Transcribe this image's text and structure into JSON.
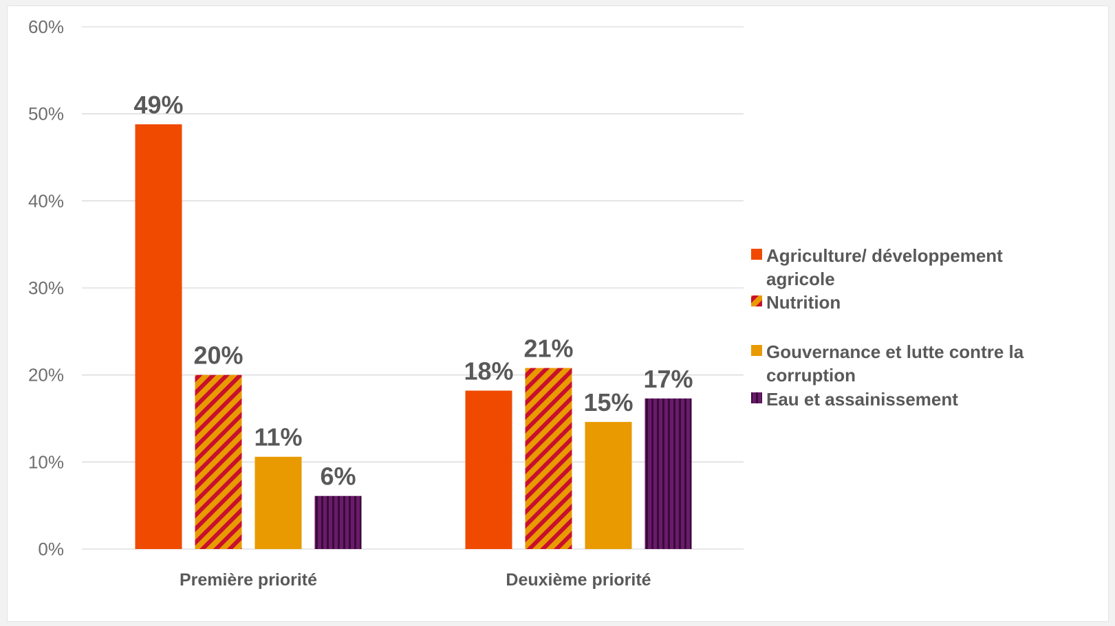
{
  "chart_data": {
    "type": "bar",
    "title": "",
    "xlabel": "",
    "ylabel": "",
    "categories": [
      "Première priorité",
      "Deuxième priorité"
    ],
    "ylim": [
      0,
      60
    ],
    "yticks": [
      0,
      10,
      20,
      30,
      40,
      50,
      60
    ],
    "ytick_labels": [
      "0%",
      "10%",
      "20%",
      "30%",
      "40%",
      "50%",
      "60%"
    ],
    "grid": true,
    "legend_position": "right",
    "series": [
      {
        "name": "Agriculture/ développement agricole",
        "legend_lines": [
          "Agriculture/ développement",
          "agricole"
        ],
        "values": [
          48.8,
          18.2
        ],
        "labels": [
          "49%",
          "18%"
        ],
        "color": "#f04a00",
        "pattern": "solid"
      },
      {
        "name": "Nutrition",
        "legend_lines": [
          "Nutrition"
        ],
        "values": [
          20.0,
          20.8
        ],
        "labels": [
          "20%",
          "21%"
        ],
        "color": "#e89a00",
        "color2": "#c8102e",
        "pattern": "diagonal-stripes"
      },
      {
        "name": "Gouvernance et lutte contre la corruption",
        "legend_lines": [
          "Gouvernance et lutte contre la",
          "corruption"
        ],
        "values": [
          10.6,
          14.6
        ],
        "labels": [
          "11%",
          "15%"
        ],
        "color": "#e89a00",
        "pattern": "solid"
      },
      {
        "name": "Eau et assainissement",
        "legend_lines": [
          "Eau et assainissement"
        ],
        "values": [
          6.1,
          17.3
        ],
        "labels": [
          "6%",
          "17%"
        ],
        "color": "#6a1b6a",
        "color2": "#3a0a3a",
        "pattern": "vertical-stripes"
      }
    ]
  }
}
